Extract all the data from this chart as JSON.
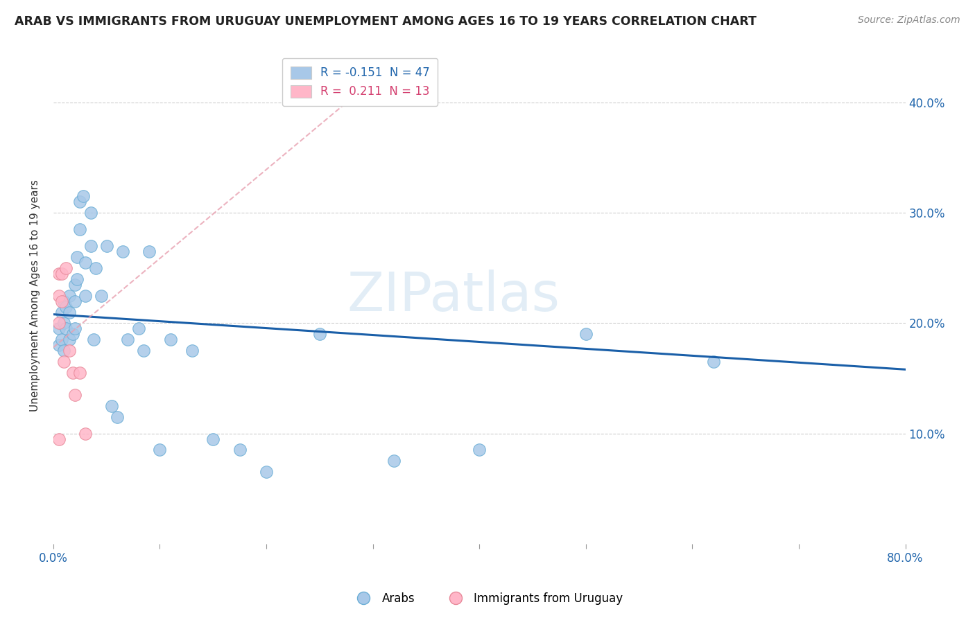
{
  "title": "ARAB VS IMMIGRANTS FROM URUGUAY UNEMPLOYMENT AMONG AGES 16 TO 19 YEARS CORRELATION CHART",
  "source": "Source: ZipAtlas.com",
  "ylabel": "Unemployment Among Ages 16 to 19 years",
  "xlim": [
    0,
    0.8
  ],
  "ylim": [
    0,
    0.45
  ],
  "arab_color": "#a8c8e8",
  "arab_edge_color": "#6baed6",
  "uruguay_color": "#ffb6c8",
  "uruguay_edge_color": "#e88a9a",
  "arab_R": -0.151,
  "arab_N": 47,
  "uruguay_R": 0.211,
  "uruguay_N": 13,
  "trend_arab_color": "#1a5fa8",
  "trend_uruguay_color": "#e8a0b0",
  "watermark": "ZIPatlas",
  "arab_trend_x0": 0.0,
  "arab_trend_y0": 0.208,
  "arab_trend_x1": 0.8,
  "arab_trend_y1": 0.158,
  "uru_trend_x0": 0.0,
  "uru_trend_y0": 0.178,
  "uru_trend_x1": 0.3,
  "uru_trend_y1": 0.42,
  "arab_x": [
    0.005,
    0.005,
    0.008,
    0.008,
    0.01,
    0.01,
    0.01,
    0.012,
    0.012,
    0.015,
    0.015,
    0.015,
    0.018,
    0.02,
    0.02,
    0.02,
    0.022,
    0.022,
    0.025,
    0.025,
    0.028,
    0.03,
    0.03,
    0.035,
    0.035,
    0.038,
    0.04,
    0.045,
    0.05,
    0.055,
    0.06,
    0.065,
    0.07,
    0.08,
    0.085,
    0.09,
    0.1,
    0.11,
    0.13,
    0.15,
    0.175,
    0.2,
    0.25,
    0.32,
    0.4,
    0.5,
    0.62
  ],
  "arab_y": [
    0.195,
    0.18,
    0.21,
    0.185,
    0.22,
    0.2,
    0.175,
    0.215,
    0.195,
    0.225,
    0.21,
    0.185,
    0.19,
    0.235,
    0.22,
    0.195,
    0.26,
    0.24,
    0.31,
    0.285,
    0.315,
    0.255,
    0.225,
    0.3,
    0.27,
    0.185,
    0.25,
    0.225,
    0.27,
    0.125,
    0.115,
    0.265,
    0.185,
    0.195,
    0.175,
    0.265,
    0.085,
    0.185,
    0.175,
    0.095,
    0.085,
    0.065,
    0.19,
    0.075,
    0.085,
    0.19,
    0.165
  ],
  "uruguay_x": [
    0.005,
    0.005,
    0.005,
    0.005,
    0.008,
    0.008,
    0.01,
    0.012,
    0.015,
    0.018,
    0.02,
    0.025,
    0.03
  ],
  "uruguay_y": [
    0.245,
    0.225,
    0.2,
    0.095,
    0.245,
    0.22,
    0.165,
    0.25,
    0.175,
    0.155,
    0.135,
    0.155,
    0.1
  ]
}
